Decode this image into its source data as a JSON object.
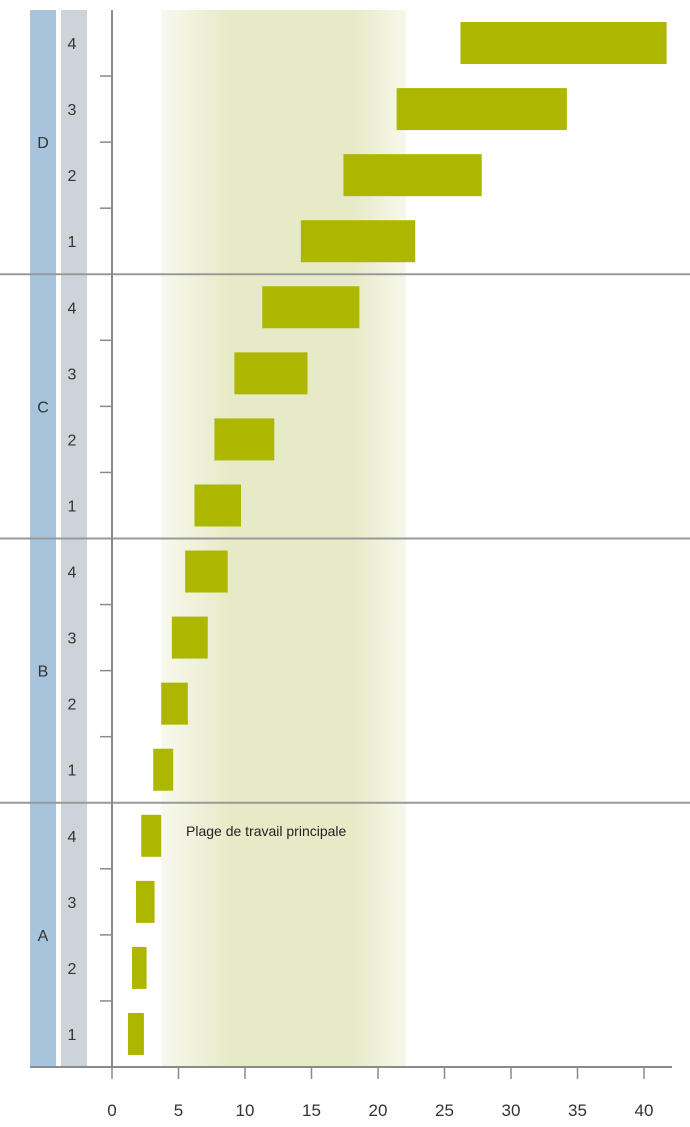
{
  "chart_data": {
    "type": "bar",
    "orientation": "horizontal-floating",
    "groups": [
      "A",
      "B",
      "C",
      "D"
    ],
    "subcategories": [
      "1",
      "2",
      "3",
      "4"
    ],
    "bars": [
      {
        "group": "A",
        "item": "1",
        "start": 1.2,
        "end": 2.4
      },
      {
        "group": "A",
        "item": "2",
        "start": 1.5,
        "end": 2.6
      },
      {
        "group": "A",
        "item": "3",
        "start": 1.8,
        "end": 3.2
      },
      {
        "group": "A",
        "item": "4",
        "start": 2.2,
        "end": 3.7
      },
      {
        "group": "B",
        "item": "1",
        "start": 3.1,
        "end": 4.6
      },
      {
        "group": "B",
        "item": "2",
        "start": 3.7,
        "end": 5.7
      },
      {
        "group": "B",
        "item": "3",
        "start": 4.5,
        "end": 7.2
      },
      {
        "group": "B",
        "item": "4",
        "start": 5.5,
        "end": 8.7
      },
      {
        "group": "C",
        "item": "1",
        "start": 6.2,
        "end": 9.7
      },
      {
        "group": "C",
        "item": "2",
        "start": 7.7,
        "end": 12.2
      },
      {
        "group": "C",
        "item": "3",
        "start": 9.2,
        "end": 14.7
      },
      {
        "group": "C",
        "item": "4",
        "start": 11.3,
        "end": 18.6
      },
      {
        "group": "D",
        "item": "1",
        "start": 14.2,
        "end": 22.8
      },
      {
        "group": "D",
        "item": "2",
        "start": 17.4,
        "end": 27.8
      },
      {
        "group": "D",
        "item": "3",
        "start": 21.4,
        "end": 34.2
      },
      {
        "group": "D",
        "item": "4",
        "start": 26.2,
        "end": 41.7
      }
    ],
    "xlim": [
      0,
      42
    ],
    "xticks": [
      "0",
      "5",
      "10",
      "15",
      "20",
      "25",
      "30",
      "35",
      "40"
    ],
    "highlight_range": {
      "start": 3.7,
      "end": 22.1,
      "label": "Plage de travail principale"
    },
    "grid": false,
    "colors": {
      "bar": "#adb700",
      "band": "#e7eac7",
      "group_column": "#a8c4dd",
      "item_column": "#cdd4d9",
      "separator": "#999999",
      "axis": "#8a8a8a"
    }
  }
}
